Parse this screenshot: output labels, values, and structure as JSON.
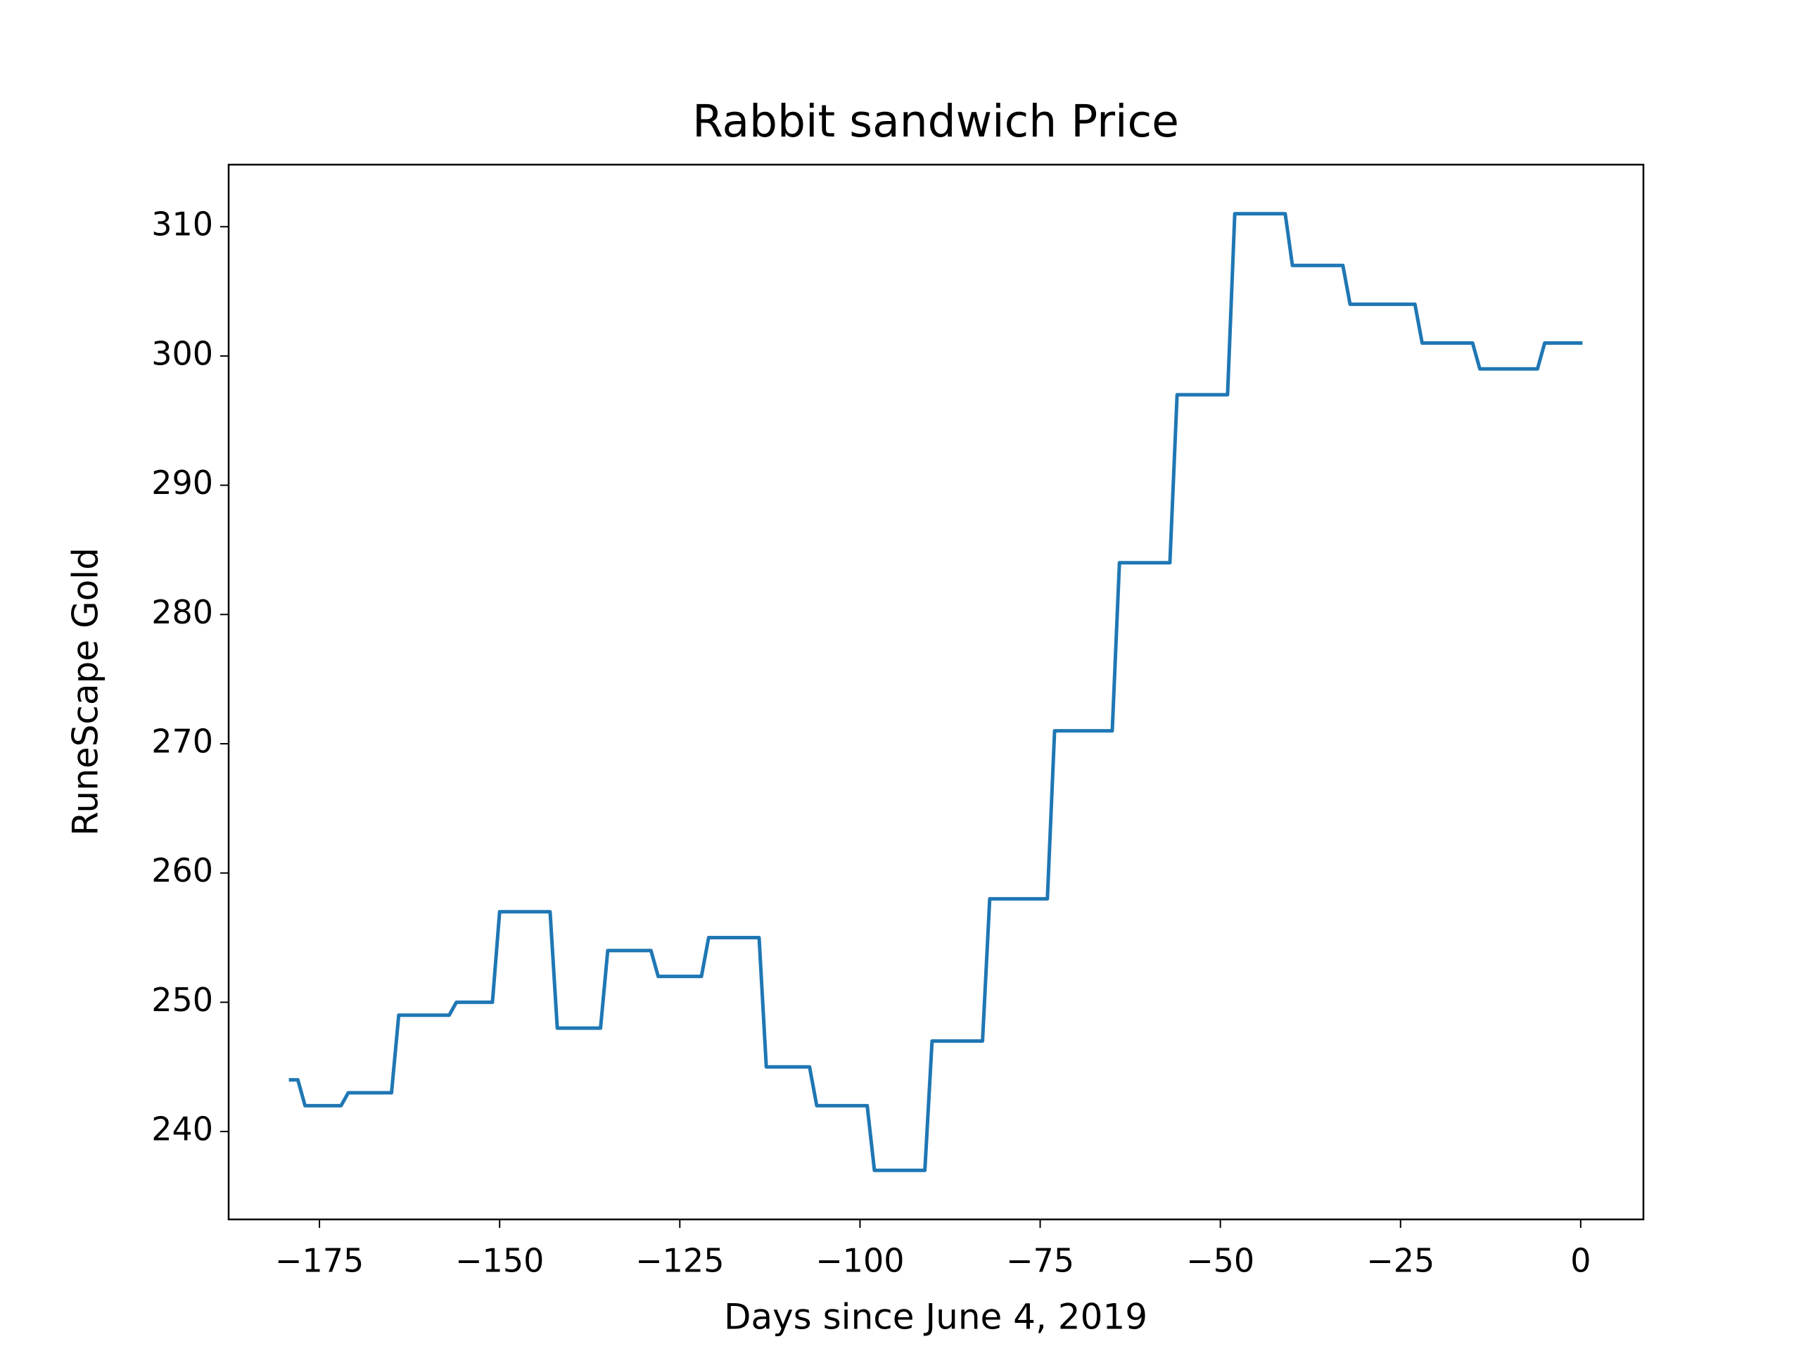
{
  "chart_data": {
    "type": "line",
    "title": "Rabbit sandwich Price",
    "xlabel": "Days since June 4, 2019",
    "ylabel": "RuneScape Gold",
    "x": [
      -179,
      -178,
      -177,
      -176,
      -175,
      -174,
      -173,
      -172,
      -171,
      -170,
      -169,
      -168,
      -167,
      -166,
      -165,
      -164,
      -163,
      -162,
      -161,
      -160,
      -159,
      -158,
      -157,
      -156,
      -155,
      -154,
      -153,
      -152,
      -151,
      -150,
      -149,
      -148,
      -147,
      -146,
      -145,
      -144,
      -143,
      -142,
      -141,
      -140,
      -139,
      -138,
      -137,
      -136,
      -135,
      -134,
      -133,
      -132,
      -131,
      -130,
      -129,
      -128,
      -127,
      -126,
      -125,
      -124,
      -123,
      -122,
      -121,
      -120,
      -119,
      -118,
      -117,
      -116,
      -115,
      -114,
      -113,
      -112,
      -111,
      -110,
      -109,
      -108,
      -107,
      -106,
      -105,
      -104,
      -103,
      -102,
      -101,
      -100,
      -99,
      -98,
      -97,
      -96,
      -95,
      -94,
      -93,
      -92,
      -91,
      -90,
      -89,
      -88,
      -87,
      -86,
      -85,
      -84,
      -83,
      -82,
      -81,
      -80,
      -79,
      -78,
      -77,
      -76,
      -75,
      -74,
      -73,
      -72,
      -71,
      -70,
      -69,
      -68,
      -67,
      -66,
      -65,
      -64,
      -63,
      -62,
      -61,
      -60,
      -59,
      -58,
      -57,
      -56,
      -55,
      -54,
      -53,
      -52,
      -51,
      -50,
      -49,
      -48,
      -47,
      -46,
      -45,
      -44,
      -43,
      -42,
      -41,
      -40,
      -39,
      -38,
      -37,
      -36,
      -35,
      -34,
      -33,
      -32,
      -31,
      -30,
      -29,
      -28,
      -27,
      -26,
      -25,
      -24,
      -23,
      -22,
      -21,
      -20,
      -19,
      -18,
      -17,
      -16,
      -15,
      -14,
      -13,
      -12,
      -11,
      -10,
      -9,
      -8,
      -7,
      -6,
      -5,
      -4,
      -3,
      -2,
      -1,
      0
    ],
    "series": [
      {
        "color": "#1f77b4",
        "values": [
          244,
          244,
          242,
          242,
          242,
          242,
          242,
          242,
          243,
          243,
          243,
          243,
          243,
          243,
          243,
          249,
          249,
          249,
          249,
          249,
          249,
          249,
          249,
          250,
          250,
          250,
          250,
          250,
          250,
          257,
          257,
          257,
          257,
          257,
          257,
          257,
          257,
          248,
          248,
          248,
          248,
          248,
          248,
          248,
          254,
          254,
          254,
          254,
          254,
          254,
          254,
          252,
          252,
          252,
          252,
          252,
          252,
          252,
          255,
          255,
          255,
          255,
          255,
          255,
          255,
          255,
          245,
          245,
          245,
          245,
          245,
          245,
          245,
          242,
          242,
          242,
          242,
          242,
          242,
          242,
          242,
          237,
          237,
          237,
          237,
          237,
          237,
          237,
          237,
          247,
          247,
          247,
          247,
          247,
          247,
          247,
          247,
          258,
          258,
          258,
          258,
          258,
          258,
          258,
          258,
          258,
          271,
          271,
          271,
          271,
          271,
          271,
          271,
          271,
          271,
          284,
          284,
          284,
          284,
          284,
          284,
          284,
          284,
          297,
          297,
          297,
          297,
          297,
          297,
          297,
          297,
          311,
          311,
          311,
          311,
          311,
          311,
          311,
          311,
          307,
          307,
          307,
          307,
          307,
          307,
          307,
          307,
          304,
          304,
          304,
          304,
          304,
          304,
          304,
          304,
          304,
          304,
          301,
          301,
          301,
          301,
          301,
          301,
          301,
          301,
          299,
          299,
          299,
          299,
          299,
          299,
          299,
          299,
          299,
          301,
          301,
          301,
          301,
          301,
          301
        ]
      }
    ],
    "xlim": [
      -187.6,
      8.7
    ],
    "ylim": [
      233.2,
      314.8
    ],
    "xticks": [
      {
        "value": -175,
        "label": "−175"
      },
      {
        "value": -150,
        "label": "−150"
      },
      {
        "value": -125,
        "label": "−125"
      },
      {
        "value": -100,
        "label": "−100"
      },
      {
        "value": -75,
        "label": "−75"
      },
      {
        "value": -50,
        "label": "−50"
      },
      {
        "value": -25,
        "label": "−25"
      },
      0
    ],
    "yticks": [
      240,
      250,
      260,
      270,
      280,
      290,
      300,
      310
    ]
  }
}
